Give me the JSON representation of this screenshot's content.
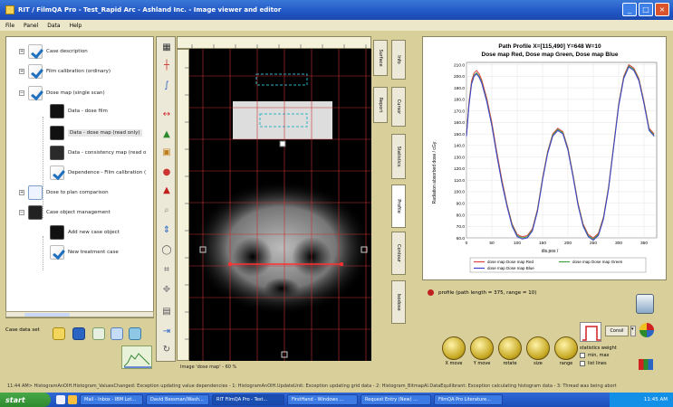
{
  "window": {
    "title": "RIT / FilmQA Pro - Test_Rapid Arc - Ashland Inc. - Image viewer and editor"
  },
  "menu": [
    "File",
    "Panel",
    "Data",
    "Help"
  ],
  "tree": [
    {
      "label": "Case description",
      "icon": "check-icon"
    },
    {
      "label": "Film calibration (ordinary)",
      "icon": "check-icon"
    },
    {
      "label": "Dose map (single scan)",
      "icon": "check-icon"
    },
    {
      "label": "Data - dose film",
      "icon": "film-icon"
    },
    {
      "label": "Data - dose map (read only)",
      "icon": "film-icon"
    },
    {
      "label": "Data - consistency map (read o",
      "icon": "film-icon"
    },
    {
      "label": "Dependence - Film calibration (",
      "icon": "check-icon"
    },
    {
      "label": "Dose to plan comparison",
      "icon": "doc-icon"
    },
    {
      "label": "Case object management",
      "icon": "film-icon"
    },
    {
      "label": "Add new case object",
      "icon": "film-icon"
    },
    {
      "label": "New treatment case",
      "icon": "check-icon"
    }
  ],
  "case_data": {
    "label": "Case data set"
  },
  "image": {
    "caption": "Image 'dose map' - 60 %"
  },
  "vtabs": {
    "left": [
      "Surface",
      "Report"
    ],
    "right": [
      "Info",
      "Cursor",
      "Statistics",
      "Profile",
      "Contour",
      "Isodose"
    ]
  },
  "plot": {
    "title_line1": "Path Profile X=[115,490] Y=648 W=10",
    "title_line2": "Dose map Red, Dose map Green, Dose map Blue",
    "ylabel": "Radiation absorbed dose / cGy",
    "xlabel": "dis.pos /"
  },
  "chart_data": {
    "type": "line",
    "title": "Path Profile X=[115,490] Y=648 W=10",
    "subtitle": "Dose map Red, Dose map Green, Dose map Blue",
    "xlabel": "dis.pos /",
    "ylabel": "Radiation absorbed dose / cGy",
    "xlim": [
      0,
      375
    ],
    "ylim": [
      60,
      212
    ],
    "xticks": [
      0,
      50,
      100,
      150,
      200,
      250,
      300,
      350
    ],
    "yticks": [
      60.0,
      70.0,
      80.0,
      90.0,
      100.0,
      110.0,
      120.0,
      130.0,
      140.0,
      150.0,
      160.0,
      170.0,
      180.0,
      190.0,
      200.0,
      210.0
    ],
    "series": [
      {
        "name": "dose map Dose map Red",
        "color": "#e04040",
        "x": [
          0,
          5,
          10,
          15,
          20,
          25,
          30,
          40,
          50,
          60,
          70,
          80,
          90,
          100,
          110,
          120,
          130,
          140,
          150,
          160,
          170,
          180,
          190,
          200,
          210,
          220,
          230,
          240,
          250,
          260,
          270,
          280,
          290,
          300,
          310,
          320,
          330,
          340,
          350,
          360,
          370
        ],
        "y": [
          150,
          178,
          196,
          203,
          205,
          202,
          197,
          181,
          160,
          134,
          110,
          89,
          72,
          63,
          61,
          62,
          68,
          85,
          112,
          135,
          150,
          155,
          152,
          138,
          115,
          90,
          72,
          63,
          60,
          64,
          78,
          104,
          140,
          176,
          200,
          210,
          207,
          198,
          178,
          155,
          150
        ]
      },
      {
        "name": "dose map Dose map Green",
        "color": "#40a040",
        "x": [
          0,
          5,
          10,
          15,
          20,
          25,
          30,
          40,
          50,
          60,
          70,
          80,
          90,
          100,
          110,
          120,
          130,
          140,
          150,
          160,
          170,
          180,
          190,
          200,
          210,
          220,
          230,
          240,
          250,
          260,
          270,
          280,
          290,
          300,
          310,
          320,
          330,
          340,
          350,
          360,
          370
        ],
        "y": [
          149,
          176,
          194,
          201,
          203,
          200,
          195,
          179,
          158,
          132,
          108,
          88,
          71,
          62,
          60,
          61,
          67,
          84,
          111,
          134,
          149,
          154,
          151,
          137,
          114,
          89,
          71,
          62,
          59,
          63,
          77,
          103,
          139,
          175,
          199,
          209,
          206,
          197,
          177,
          154,
          149
        ]
      },
      {
        "name": "dose map Dose map Blue",
        "color": "#4040d0",
        "x": [
          0,
          5,
          10,
          15,
          20,
          25,
          30,
          40,
          50,
          60,
          70,
          80,
          90,
          100,
          110,
          120,
          130,
          140,
          150,
          160,
          170,
          180,
          190,
          200,
          210,
          220,
          230,
          240,
          250,
          260,
          270,
          280,
          290,
          300,
          310,
          320,
          330,
          340,
          350,
          360,
          370
        ],
        "y": [
          148,
          175,
          193,
          200,
          202,
          199,
          194,
          178,
          157,
          131,
          107,
          87,
          70,
          61,
          59,
          60,
          66,
          83,
          110,
          133,
          148,
          153,
          150,
          136,
          113,
          88,
          70,
          61,
          58,
          62,
          76,
          102,
          138,
          174,
          198,
          208,
          205,
          196,
          176,
          153,
          148
        ]
      }
    ],
    "legend_position": "bottom",
    "grid": true
  },
  "profile_info": "profile (path length = 375, range = 10)",
  "knobs": [
    {
      "label": "X move"
    },
    {
      "label": "Y move"
    },
    {
      "label": "rotate"
    },
    {
      "label": "size"
    },
    {
      "label": "range"
    }
  ],
  "filter": {
    "select": "Consil",
    "option1": "statistics weight",
    "option2": "min, max",
    "option3": "list lines"
  },
  "status": "11:44 AM> HistogramAnOIH.Histogram_ValuesChanged: Exception updating value dependencies - 1: HistogramAnOIH.UpdateUnit: Exception updating grid data - 2: Histogram_BitmapAl.DataEquilibrant: Exception calculating histogram data - 3: Thread was being abort",
  "taskbar": {
    "start": "start",
    "tasks": [
      "Mail - Inbox - IBM Lot...",
      "David Bessman/Wash...",
      "RIT FilmQA Pro - Test...",
      "FirstHand - Windows ...",
      "Request Entry (New) ...",
      "FilmQA Pro Literature..."
    ],
    "clock": "11:45 AM"
  }
}
